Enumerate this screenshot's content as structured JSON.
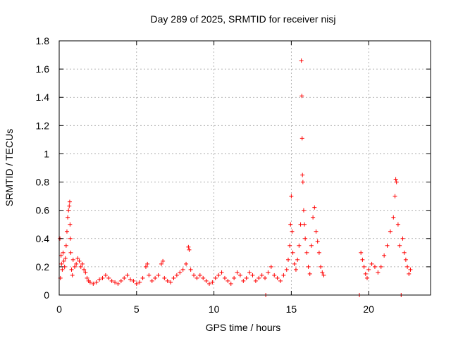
{
  "chart_data": {
    "type": "scatter",
    "title": "Day 289 of 2025, SRMTID for receiver nisj",
    "xlabel": "GPS time / hours",
    "ylabel": "SRMTID / TECUs",
    "xlim": [
      0,
      24
    ],
    "ylim": [
      0,
      1.8
    ],
    "x_ticks": [
      0,
      5,
      10,
      15,
      20
    ],
    "x_tick_labels": [
      "0",
      "5",
      "10",
      "15",
      "20"
    ],
    "y_ticks": [
      0,
      0.2,
      0.4,
      0.6,
      0.8,
      1.0,
      1.2,
      1.4,
      1.6,
      1.8
    ],
    "y_tick_labels": [
      "0",
      "0.2",
      "0.4",
      "0.6",
      "0.8",
      "1",
      "1.2",
      "1.4",
      "1.6",
      "1.8"
    ],
    "grid": true,
    "marker": "plus",
    "series": [
      {
        "name": "SRMTID",
        "color": "#ff0000",
        "points": [
          [
            0.05,
            0.4
          ],
          [
            0.08,
            0.12
          ],
          [
            0.12,
            0.28
          ],
          [
            0.15,
            0.22
          ],
          [
            0.2,
            0.18
          ],
          [
            0.25,
            0.3
          ],
          [
            0.3,
            0.24
          ],
          [
            0.35,
            0.2
          ],
          [
            0.4,
            0.26
          ],
          [
            0.45,
            0.35
          ],
          [
            0.5,
            0.45
          ],
          [
            0.55,
            0.55
          ],
          [
            0.6,
            0.6
          ],
          [
            0.65,
            0.63
          ],
          [
            0.68,
            0.66
          ],
          [
            0.7,
            0.5
          ],
          [
            0.72,
            0.4
          ],
          [
            0.75,
            0.3
          ],
          [
            0.8,
            0.18
          ],
          [
            0.85,
            0.14
          ],
          [
            0.9,
            0.25
          ],
          [
            1.0,
            0.2
          ],
          [
            1.1,
            0.22
          ],
          [
            1.2,
            0.26
          ],
          [
            1.3,
            0.24
          ],
          [
            1.4,
            0.2
          ],
          [
            1.5,
            0.22
          ],
          [
            1.6,
            0.18
          ],
          [
            1.7,
            0.16
          ],
          [
            1.8,
            0.12
          ],
          [
            1.9,
            0.1
          ],
          [
            2.0,
            0.09
          ],
          [
            2.2,
            0.08
          ],
          [
            2.4,
            0.09
          ],
          [
            2.6,
            0.11
          ],
          [
            2.8,
            0.12
          ],
          [
            3.0,
            0.14
          ],
          [
            3.2,
            0.12
          ],
          [
            3.4,
            0.1
          ],
          [
            3.6,
            0.09
          ],
          [
            3.8,
            0.08
          ],
          [
            4.0,
            0.1
          ],
          [
            4.2,
            0.12
          ],
          [
            4.4,
            0.14
          ],
          [
            4.6,
            0.11
          ],
          [
            4.8,
            0.1
          ],
          [
            5.0,
            0.08
          ],
          [
            5.2,
            0.09
          ],
          [
            5.4,
            0.12
          ],
          [
            5.6,
            0.2
          ],
          [
            5.7,
            0.22
          ],
          [
            5.8,
            0.14
          ],
          [
            6.0,
            0.1
          ],
          [
            6.2,
            0.12
          ],
          [
            6.4,
            0.14
          ],
          [
            6.6,
            0.22
          ],
          [
            6.7,
            0.24
          ],
          [
            6.8,
            0.12
          ],
          [
            7.0,
            0.1
          ],
          [
            7.2,
            0.09
          ],
          [
            7.4,
            0.12
          ],
          [
            7.6,
            0.14
          ],
          [
            7.8,
            0.16
          ],
          [
            8.0,
            0.18
          ],
          [
            8.2,
            0.22
          ],
          [
            8.35,
            0.34
          ],
          [
            8.4,
            0.32
          ],
          [
            8.5,
            0.18
          ],
          [
            8.7,
            0.14
          ],
          [
            8.9,
            0.12
          ],
          [
            9.1,
            0.14
          ],
          [
            9.3,
            0.12
          ],
          [
            9.5,
            0.1
          ],
          [
            9.7,
            0.08
          ],
          [
            9.9,
            0.09
          ],
          [
            10.1,
            0.12
          ],
          [
            10.3,
            0.14
          ],
          [
            10.5,
            0.16
          ],
          [
            10.7,
            0.12
          ],
          [
            10.9,
            0.1
          ],
          [
            11.1,
            0.08
          ],
          [
            11.3,
            0.12
          ],
          [
            11.5,
            0.16
          ],
          [
            11.7,
            0.14
          ],
          [
            11.9,
            0.1
          ],
          [
            12.1,
            0.12
          ],
          [
            12.3,
            0.16
          ],
          [
            12.5,
            0.14
          ],
          [
            12.7,
            0.1
          ],
          [
            12.9,
            0.12
          ],
          [
            13.1,
            0.14
          ],
          [
            13.3,
            0.12
          ],
          [
            13.35,
            0.0
          ],
          [
            13.5,
            0.16
          ],
          [
            13.7,
            0.2
          ],
          [
            13.9,
            0.14
          ],
          [
            14.1,
            0.12
          ],
          [
            14.3,
            0.1
          ],
          [
            14.5,
            0.14
          ],
          [
            14.7,
            0.18
          ],
          [
            14.8,
            0.25
          ],
          [
            14.9,
            0.35
          ],
          [
            14.95,
            0.5
          ],
          [
            15.0,
            0.7
          ],
          [
            15.05,
            0.45
          ],
          [
            15.1,
            0.3
          ],
          [
            15.2,
            0.22
          ],
          [
            15.3,
            0.18
          ],
          [
            15.4,
            0.25
          ],
          [
            15.5,
            0.35
          ],
          [
            15.6,
            0.5
          ],
          [
            15.65,
            1.66
          ],
          [
            15.68,
            1.41
          ],
          [
            15.7,
            1.11
          ],
          [
            15.72,
            0.85
          ],
          [
            15.75,
            0.8
          ],
          [
            15.8,
            0.6
          ],
          [
            15.85,
            0.5
          ],
          [
            15.9,
            0.4
          ],
          [
            16.0,
            0.3
          ],
          [
            16.1,
            0.2
          ],
          [
            16.2,
            0.15
          ],
          [
            16.3,
            0.35
          ],
          [
            16.4,
            0.55
          ],
          [
            16.5,
            0.62
          ],
          [
            16.6,
            0.45
          ],
          [
            16.7,
            0.38
          ],
          [
            16.8,
            0.3
          ],
          [
            16.9,
            0.2
          ],
          [
            17.0,
            0.16
          ],
          [
            17.1,
            0.14
          ],
          [
            19.4,
            0.0
          ],
          [
            19.5,
            0.3
          ],
          [
            19.6,
            0.25
          ],
          [
            19.7,
            0.2
          ],
          [
            19.8,
            0.15
          ],
          [
            19.9,
            0.12
          ],
          [
            20.0,
            0.18
          ],
          [
            20.2,
            0.22
          ],
          [
            20.4,
            0.2
          ],
          [
            20.6,
            0.16
          ],
          [
            20.8,
            0.2
          ],
          [
            21.0,
            0.28
          ],
          [
            21.2,
            0.35
          ],
          [
            21.4,
            0.45
          ],
          [
            21.6,
            0.55
          ],
          [
            21.7,
            0.7
          ],
          [
            21.75,
            0.82
          ],
          [
            21.8,
            0.8
          ],
          [
            21.9,
            0.5
          ],
          [
            22.0,
            0.35
          ],
          [
            22.1,
            0.0
          ],
          [
            22.2,
            0.4
          ],
          [
            22.3,
            0.3
          ],
          [
            22.4,
            0.25
          ],
          [
            22.5,
            0.2
          ],
          [
            22.6,
            0.15
          ],
          [
            22.7,
            0.18
          ]
        ]
      }
    ]
  }
}
